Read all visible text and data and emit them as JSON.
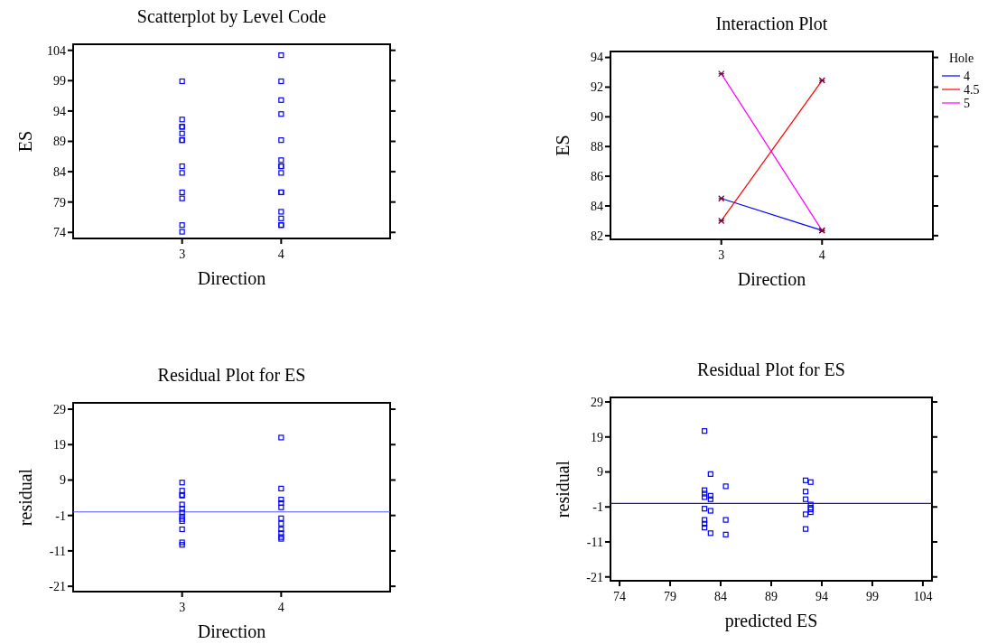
{
  "chart_data": [
    {
      "type": "scatter",
      "title": "Scatterplot by Level Code",
      "xlabel": "Direction",
      "ylabel": "ES",
      "xlim": [
        1.9,
        5.1
      ],
      "xticks": [
        3,
        4
      ],
      "ylim": [
        73,
        105
      ],
      "yticks": [
        74,
        79,
        84,
        89,
        94,
        99,
        104
      ],
      "marker": "square",
      "series": [
        {
          "color": "#0000ff",
          "x": [
            3,
            3,
            3,
            3,
            3,
            3,
            3,
            3,
            3,
            3,
            3,
            3,
            3,
            4,
            4,
            4,
            4,
            4,
            4,
            4,
            4,
            4,
            4,
            4,
            4,
            4,
            4,
            4
          ],
          "values": [
            98.9,
            92.6,
            91.4,
            91.4,
            90.3,
            89.2,
            89.2,
            84.9,
            83.8,
            80.6,
            79.6,
            75.2,
            74.1,
            103.2,
            98.9,
            95.8,
            93.5,
            89.2,
            85.9,
            84.9,
            84.9,
            83.8,
            80.6,
            80.6,
            77.4,
            76.3,
            75.2,
            75.2
          ]
        }
      ]
    },
    {
      "type": "line",
      "title": "Interaction Plot",
      "xlabel": "Direction",
      "ylabel": "ES",
      "x": [
        3,
        4
      ],
      "xlim": [
        1.9,
        5.1
      ],
      "xticks": [
        3,
        4
      ],
      "ylim": [
        81.75,
        94.4
      ],
      "yticks": [
        82,
        84,
        86,
        88,
        90,
        92,
        94
      ],
      "marker": "cross",
      "legend": "right",
      "legend_title": "Hole",
      "series": [
        {
          "name": "4",
          "color": "#0000ff",
          "values": [
            84.5,
            82.35
          ]
        },
        {
          "name": "4.5",
          "color": "#ff0000",
          "values": [
            83.0,
            92.45
          ]
        },
        {
          "name": "5",
          "color": "#ff00ff",
          "values": [
            92.9,
            82.35
          ]
        }
      ]
    },
    {
      "type": "scatter",
      "title": "Residual Plot for ES",
      "xlabel": "Direction",
      "ylabel": "residual",
      "xlim": [
        1.9,
        5.1
      ],
      "xticks": [
        3,
        4
      ],
      "ylim": [
        -22.5,
        30.8
      ],
      "yticks": [
        {
          "value": -21,
          "label": "-21"
        },
        {
          "value": -11,
          "label": "-11"
        },
        {
          "value": -1,
          "label": "-1"
        },
        9,
        19,
        29
      ],
      "marker": "square",
      "ref_lines": [
        {
          "axis": "y",
          "value": 0,
          "color": "#5555ff"
        }
      ],
      "series": [
        {
          "color": "#0000ff",
          "x": [
            3,
            3,
            3,
            3,
            3,
            3,
            3,
            3,
            3,
            3,
            3,
            3,
            3,
            4,
            4,
            4,
            4,
            4,
            4,
            4,
            4,
            4,
            4,
            4
          ],
          "values": [
            8.3,
            6.0,
            4.8,
            4.6,
            2.1,
            0.9,
            -0.2,
            -1.3,
            -2.0,
            -2.6,
            -4.9,
            -8.6,
            -9.3,
            21.0,
            6.6,
            3.5,
            2.5,
            1.3,
            -1.8,
            -3.3,
            -4.9,
            -6.0,
            -7.1,
            -7.6
          ]
        }
      ]
    },
    {
      "type": "scatter",
      "title": "Residual Plot for ES",
      "xlabel": "predicted ES",
      "ylabel": "residual",
      "xlim": [
        73.1,
        104.9
      ],
      "xticks": [
        74,
        79,
        84,
        89,
        94,
        99,
        104
      ],
      "ylim": [
        -22.1,
        30.3
      ],
      "yticks": [
        {
          "value": -21,
          "label": "-21"
        },
        {
          "value": -11,
          "label": "-11"
        },
        {
          "value": -1,
          "label": "-1"
        },
        9,
        19,
        29
      ],
      "marker": "square",
      "ref_lines": [
        {
          "axis": "y",
          "value": 0,
          "color": "#1a1aa0"
        }
      ],
      "series": [
        {
          "color": "#0000ff",
          "x": [
            82.4,
            82.4,
            82.4,
            82.4,
            82.4,
            82.4,
            82.4,
            82.4,
            83.0,
            83.0,
            83.0,
            83.0,
            83.0,
            84.5,
            84.5,
            84.5,
            92.4,
            92.4,
            92.4,
            92.4,
            92.4,
            92.9,
            92.9,
            92.9,
            92.9,
            92.9
          ],
          "values": [
            20.7,
            3.8,
            2.8,
            1.8,
            -1.5,
            -4.7,
            -5.8,
            -6.9,
            8.4,
            2.2,
            1.2,
            -2.1,
            -8.5,
            4.9,
            -4.7,
            -8.9,
            6.6,
            3.4,
            1.2,
            -3.1,
            -7.3,
            6.1,
            -0.3,
            -1.2,
            -1.7,
            -2.5
          ]
        }
      ]
    }
  ]
}
